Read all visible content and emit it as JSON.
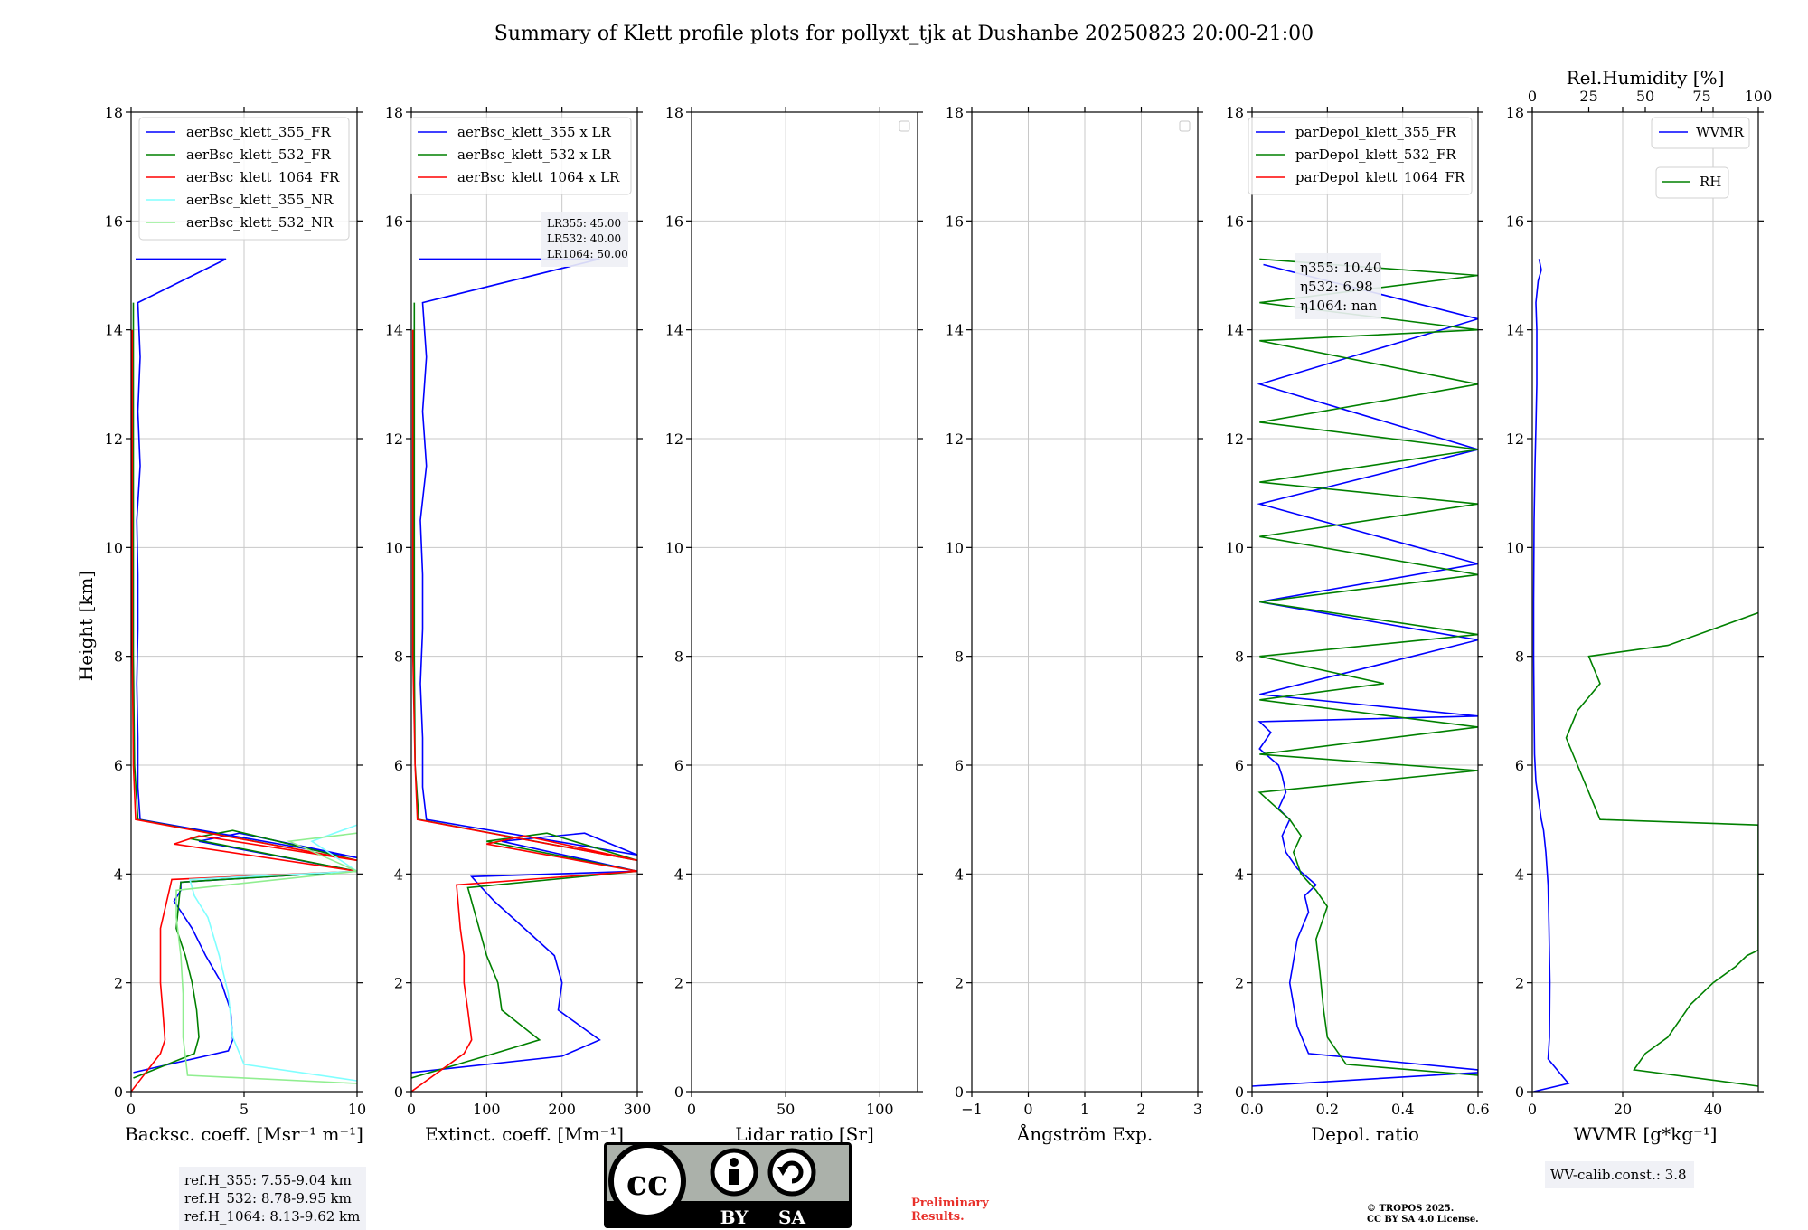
{
  "figure": {
    "title": "Summary of Klett profile plots for pollyxt_tjk at Dushanbe 20250823 20:00-21:00",
    "ylabel": "Height [km]",
    "preliminary_line1": "Preliminary",
    "preliminary_line2": "Results.",
    "copyright_line1": "© TROPOS 2025.",
    "copyright_line2": "CC BY SA 4.0 License.",
    "cc_by": "BY",
    "cc_sa": "SA",
    "cc_mark": "cc",
    "colors": {
      "blue": "#0000ff",
      "green": "#008000",
      "red": "#ff0000",
      "cyan": "#80ffff",
      "lightgreen": "#90ee90"
    }
  },
  "chart_data": [
    {
      "type": "line",
      "xlabel": "Backsc. coeff. [Msr⁻¹ m⁻¹]",
      "xlim": [
        0,
        10
      ],
      "ylim": [
        0,
        18
      ],
      "xticks": [
        0,
        5,
        10
      ],
      "yticks": [
        0,
        2,
        4,
        6,
        8,
        10,
        12,
        14,
        16,
        18
      ],
      "grid": true,
      "legend": "top-left",
      "series": [
        {
          "name": "aerBsc_klett_355_FR",
          "color": "#0000ff",
          "x": [
            0.1,
            4.3,
            4.5,
            4.4,
            4.0,
            3.3,
            2.7,
            1.9,
            2.2,
            2.2,
            10,
            3.0,
            4.8,
            10,
            0.4,
            0.3,
            0.3,
            0.25,
            0.3,
            0.3,
            0.25,
            0.4,
            0.3,
            0.4,
            0.3,
            4.2,
            0.2
          ],
          "y": [
            0.35,
            0.75,
            0.95,
            1.5,
            2.0,
            2.5,
            3.0,
            3.5,
            3.7,
            3.85,
            4.05,
            4.6,
            4.75,
            4.3,
            5.0,
            5.6,
            6.5,
            7.5,
            8.5,
            9.5,
            10.5,
            11.5,
            12.5,
            13.5,
            14.5,
            15.3,
            15.3
          ]
        },
        {
          "name": "aerBsc_klett_532_FR",
          "color": "#008000",
          "x": [
            0.1,
            2.8,
            3.0,
            2.9,
            2.7,
            2.4,
            2.0,
            2.2,
            10,
            2.6,
            4.5,
            10,
            0.3,
            0.15,
            0.1,
            0.1
          ],
          "y": [
            0.25,
            0.7,
            1.0,
            1.5,
            2.0,
            2.5,
            3.0,
            3.85,
            4.05,
            4.65,
            4.8,
            4.25,
            5.0,
            6.0,
            8.0,
            14.5
          ]
        },
        {
          "name": "aerBsc_klett_1064_FR",
          "color": "#ff0000",
          "x": [
            0.0,
            1.3,
            1.5,
            1.4,
            1.3,
            1.3,
            1.3,
            1.8,
            10,
            1.9,
            3.0,
            10,
            0.2,
            0.1,
            0.05,
            0.05
          ],
          "y": [
            0.0,
            0.7,
            0.95,
            1.5,
            2.0,
            2.5,
            3.0,
            3.9,
            4.05,
            4.55,
            4.7,
            4.25,
            5.0,
            6.0,
            8.0,
            14.0
          ]
        },
        {
          "name": "aerBsc_klett_355_NR",
          "color": "#80ffff",
          "x": [
            10,
            5.0,
            4.5,
            4.3,
            3.9,
            3.4,
            2.8,
            2.6,
            10,
            8.0,
            10
          ],
          "y": [
            0.2,
            0.5,
            1.0,
            1.8,
            2.5,
            3.2,
            3.6,
            3.9,
            4.05,
            4.6,
            4.9
          ]
        },
        {
          "name": "aerBsc_klett_532_NR",
          "color": "#90ee90",
          "x": [
            10,
            2.5,
            2.3,
            2.3,
            2.2,
            2.0,
            2.0,
            10,
            7.0,
            10
          ],
          "y": [
            0.15,
            0.3,
            1.0,
            1.8,
            2.5,
            3.2,
            3.7,
            4.05,
            4.6,
            4.75
          ]
        }
      ],
      "annotation_lines": [
        "ref.H_355: 7.55-9.04 km",
        "ref.H_532: 8.78-9.95 km",
        "ref.H_1064: 8.13-9.62 km"
      ]
    },
    {
      "type": "line",
      "xlabel": "Extinct. coeff. [Mm⁻¹]",
      "xlim": [
        0,
        300
      ],
      "ylim": [
        0,
        18
      ],
      "xticks": [
        0,
        100,
        200,
        300
      ],
      "yticks": [
        0,
        2,
        4,
        6,
        8,
        10,
        12,
        14,
        16,
        18
      ],
      "grid": true,
      "legend": "top-left",
      "series": [
        {
          "name": "aerBsc_klett_355 x LR",
          "color": "#0000ff",
          "x": [
            0,
            200,
            250,
            195,
            200,
            190,
            150,
            110,
            90,
            80,
            300,
            120,
            230,
            300,
            20,
            15,
            15,
            12,
            15,
            15,
            12,
            20,
            15,
            20,
            15,
            250,
            10
          ],
          "y": [
            0.35,
            0.65,
            0.95,
            1.5,
            2.0,
            2.5,
            3.0,
            3.5,
            3.8,
            3.95,
            4.05,
            4.6,
            4.75,
            4.35,
            5.0,
            5.6,
            6.5,
            7.5,
            8.5,
            9.5,
            10.5,
            11.5,
            12.5,
            13.5,
            14.5,
            15.3,
            15.3
          ]
        },
        {
          "name": "aerBsc_klett_532 x LR",
          "color": "#008000",
          "x": [
            0,
            110,
            170,
            120,
            115,
            100,
            90,
            75,
            300,
            100,
            180,
            300,
            10,
            5,
            4,
            4
          ],
          "y": [
            0.25,
            0.7,
            0.95,
            1.5,
            2.0,
            2.5,
            3.0,
            3.75,
            4.05,
            4.6,
            4.75,
            4.25,
            5.0,
            6.0,
            8.0,
            14.5
          ]
        },
        {
          "name": "aerBsc_klett_1064 x LR",
          "color": "#ff0000",
          "x": [
            0,
            70,
            80,
            75,
            70,
            70,
            65,
            60,
            300,
            100,
            150,
            300,
            8,
            5,
            2,
            2
          ],
          "y": [
            0.0,
            0.7,
            0.95,
            1.5,
            2.0,
            2.5,
            3.0,
            3.8,
            4.05,
            4.55,
            4.7,
            4.25,
            5.0,
            6.0,
            8.0,
            14.0
          ]
        }
      ],
      "annotation_lines": [
        "LR355: 45.00",
        "LR532: 40.00",
        "LR1064: 50.00"
      ]
    },
    {
      "type": "line",
      "xlabel": "Lidar ratio [Sr]",
      "xlim": [
        0,
        120
      ],
      "ylim": [
        0,
        18
      ],
      "xticks": [
        0,
        50,
        100
      ],
      "yticks": [
        0,
        2,
        4,
        6,
        8,
        10,
        12,
        14,
        16,
        18
      ],
      "grid": true,
      "legend": "top-right",
      "series": []
    },
    {
      "type": "line",
      "xlabel": "Ångström Exp.",
      "xlim": [
        -1,
        3
      ],
      "ylim": [
        0,
        18
      ],
      "xticks": [
        -1,
        0,
        1,
        2,
        3
      ],
      "yticks": [
        0,
        2,
        4,
        6,
        8,
        10,
        12,
        14,
        16,
        18
      ],
      "grid": true,
      "legend": "top-right",
      "series": []
    },
    {
      "type": "line",
      "xlabel": "Depol. ratio",
      "xlim": [
        0,
        0.6
      ],
      "ylim": [
        0,
        18
      ],
      "xticks": [
        0.0,
        0.2,
        0.4,
        0.6
      ],
      "yticks": [
        0,
        2,
        4,
        6,
        8,
        10,
        12,
        14,
        16,
        18
      ],
      "grid": true,
      "legend": "top-left",
      "series": [
        {
          "name": "parDepol_klett_355_FR",
          "color": "#0000ff",
          "x": [
            0.0,
            0.6,
            0.6,
            0.15,
            0.12,
            0.1,
            0.12,
            0.15,
            0.14,
            0.17,
            0.12,
            0.09,
            0.08,
            0.1,
            0.07,
            0.09,
            0.08,
            0.07,
            0.02,
            0.05,
            0.02,
            0.6,
            0.02,
            0.6,
            0.02,
            0.6,
            0.02,
            0.6,
            0.02,
            0.6,
            0.03
          ],
          "y": [
            0.1,
            0.35,
            0.4,
            0.7,
            1.2,
            2.0,
            2.8,
            3.3,
            3.6,
            3.8,
            4.1,
            4.4,
            4.7,
            5.0,
            5.2,
            5.5,
            5.8,
            6.0,
            6.3,
            6.6,
            6.8,
            6.9,
            7.3,
            8.3,
            9.0,
            9.7,
            10.8,
            11.8,
            13.0,
            14.2,
            15.2
          ]
        },
        {
          "name": "parDepol_klett_532_FR",
          "color": "#008000",
          "x": [
            0.6,
            0.25,
            0.2,
            0.19,
            0.18,
            0.17,
            0.2,
            0.17,
            0.13,
            0.11,
            0.13,
            0.1,
            0.02,
            0.6,
            0.02,
            0.6,
            0.02,
            0.35,
            0.02,
            0.6,
            0.02,
            0.6,
            0.02,
            0.6,
            0.02,
            0.6,
            0.02,
            0.6,
            0.02,
            0.6,
            0.02,
            0.6,
            0.02
          ],
          "y": [
            0.3,
            0.5,
            1.0,
            1.5,
            2.2,
            2.8,
            3.4,
            3.7,
            4.0,
            4.4,
            4.7,
            5.0,
            5.5,
            5.9,
            6.2,
            6.7,
            7.2,
            7.5,
            8.0,
            8.4,
            9.0,
            9.5,
            10.2,
            10.8,
            11.2,
            11.8,
            12.3,
            13.0,
            13.8,
            14.0,
            14.5,
            15.0,
            15.3
          ]
        },
        {
          "name": "parDepol_klett_1064_FR",
          "color": "#ff0000",
          "x": [],
          "y": []
        }
      ],
      "annotation_lines": [
        "η355: 10.40",
        "η532: 6.98",
        "η1064: nan"
      ]
    },
    {
      "type": "line",
      "xlabel": "WVMR [g*kg⁻¹]",
      "x2label": "Rel.Humidity [%]",
      "xlim": [
        0,
        50
      ],
      "x2lim": [
        0,
        100
      ],
      "ylim": [
        0,
        18
      ],
      "xticks": [
        0,
        20,
        40
      ],
      "x2ticks": [
        0,
        25,
        50,
        75,
        100
      ],
      "yticks": [
        0,
        2,
        4,
        6,
        8,
        10,
        12,
        14,
        16,
        18
      ],
      "grid": true,
      "legend": "top-right",
      "series": [
        {
          "name": "WVMR",
          "axis": "x",
          "color": "#0000ff",
          "x": [
            0.3,
            8,
            3.5,
            3.8,
            3.9,
            3.7,
            3.5,
            3.0,
            2.5,
            2.0,
            1.5,
            0.8,
            0.5,
            0.4,
            0.3,
            0.3,
            0.4,
            0.6,
            0.8,
            1.0,
            1.0,
            1.0,
            0.8,
            1.3,
            2.0,
            1.5
          ],
          "y": [
            0.0,
            0.15,
            0.6,
            1.0,
            2.0,
            3.0,
            3.8,
            4.4,
            4.8,
            5.0,
            5.3,
            5.7,
            6.2,
            7.0,
            8.0,
            9.0,
            10.5,
            11.5,
            12.2,
            13.0,
            13.5,
            14.0,
            14.5,
            14.9,
            15.1,
            15.3
          ]
        },
        {
          "name": "RH",
          "axis": "x2",
          "color": "#008000",
          "x": [
            100,
            45,
            50,
            60,
            65,
            70,
            80,
            90,
            95,
            100,
            100,
            100,
            30,
            25,
            20,
            15,
            20,
            30,
            25,
            60,
            80,
            100
          ],
          "y": [
            0.1,
            0.4,
            0.7,
            1.0,
            1.3,
            1.6,
            2.0,
            2.3,
            2.5,
            2.6,
            4.3,
            4.9,
            5.0,
            5.5,
            6.0,
            6.5,
            7.0,
            7.5,
            8.0,
            8.2,
            8.5,
            8.8
          ]
        }
      ],
      "annotation_lines": [
        "WV-calib.const.: 3.8"
      ]
    }
  ]
}
